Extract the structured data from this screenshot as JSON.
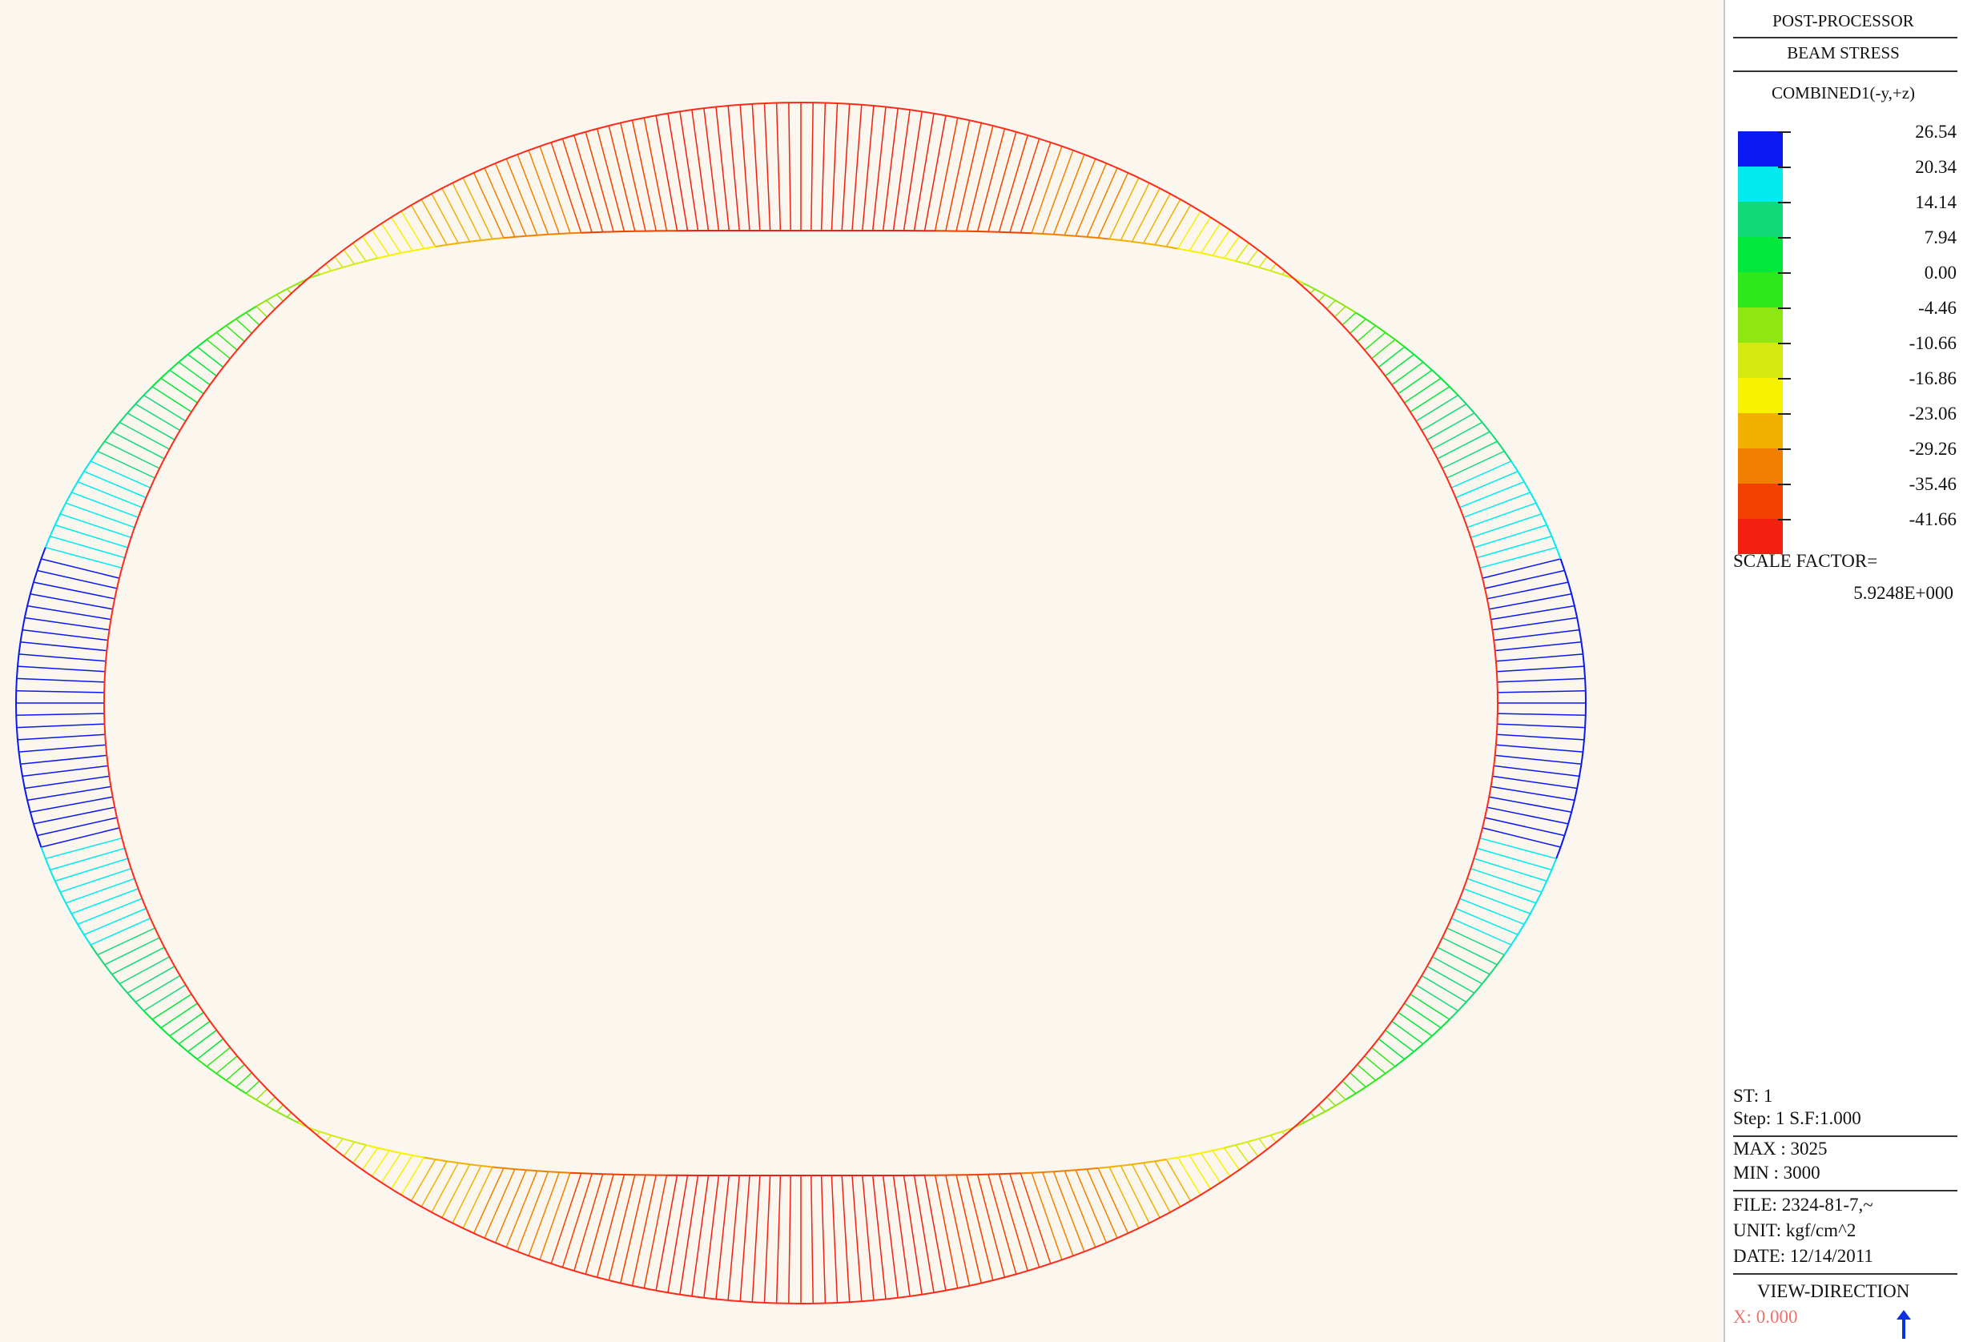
{
  "panel": {
    "title": "POST-PROCESSOR",
    "subtitle": "BEAM STRESS",
    "component": "COMBINED1(-y,+z)",
    "legend": [
      {
        "value": "26.54",
        "color": "#0a19ef"
      },
      {
        "value": "20.34",
        "color": "#00eaf0"
      },
      {
        "value": "14.14",
        "color": "#12d978"
      },
      {
        "value": "7.94",
        "color": "#00e83c"
      },
      {
        "value": "0.00",
        "color": "#2ee81c"
      },
      {
        "value": "-4.46",
        "color": "#8ee612"
      },
      {
        "value": "-10.66",
        "color": "#d5ea10"
      },
      {
        "value": "-16.86",
        "color": "#f7f200"
      },
      {
        "value": "-23.06",
        "color": "#f2b100"
      },
      {
        "value": "-29.26",
        "color": "#f28000"
      },
      {
        "value": "-35.46",
        "color": "#f24000"
      },
      {
        "value": "-41.66",
        "color": "#f22010"
      }
    ],
    "scale_factor_label": "SCALE FACTOR=",
    "scale_factor_value": "5.9248E+000",
    "st": "ST: 1",
    "step": "Step: 1 S.F:1.000",
    "max": "MAX : 3025",
    "min": "MIN : 3000",
    "file": "FILE: 2324-81-7,~",
    "unit": "UNIT: kgf/cm^2",
    "date": "DATE: 12/14/2011",
    "view_direction": "VIEW-DIRECTION",
    "view_x": "X: 0.000",
    "view_arrow_icon": "arrow-up-icon"
  },
  "diagram": {
    "ring_color": "#ff2a1a",
    "stress_colors_by_angle": "colormap from legend"
  }
}
